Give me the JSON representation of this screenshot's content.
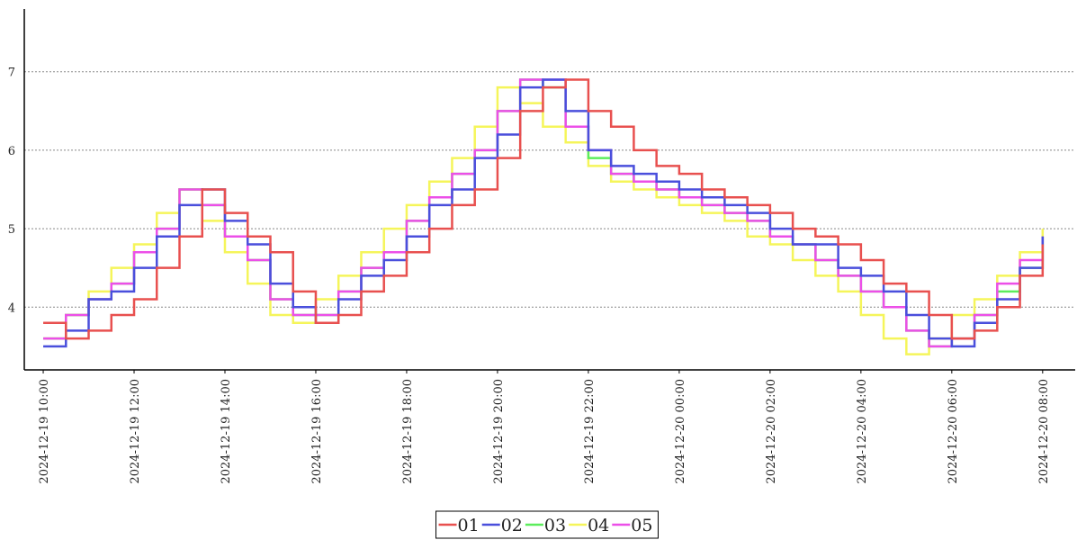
{
  "chart_data": {
    "type": "step-line",
    "x": [
      "2024-12-19 10:00",
      "2024-12-19 10:30",
      "2024-12-19 11:00",
      "2024-12-19 11:30",
      "2024-12-19 12:00",
      "2024-12-19 12:30",
      "2024-12-19 13:00",
      "2024-12-19 13:30",
      "2024-12-19 14:00",
      "2024-12-19 14:30",
      "2024-12-19 15:00",
      "2024-12-19 15:30",
      "2024-12-19 16:00",
      "2024-12-19 16:30",
      "2024-12-19 17:00",
      "2024-12-19 17:30",
      "2024-12-19 18:00",
      "2024-12-19 18:30",
      "2024-12-19 19:00",
      "2024-12-19 19:30",
      "2024-12-19 20:00",
      "2024-12-19 20:30",
      "2024-12-19 21:00",
      "2024-12-19 21:30",
      "2024-12-19 22:00",
      "2024-12-19 22:30",
      "2024-12-19 23:00",
      "2024-12-19 23:30",
      "2024-12-20 00:00",
      "2024-12-20 00:30",
      "2024-12-20 01:00",
      "2024-12-20 01:30",
      "2024-12-20 02:00",
      "2024-12-20 02:30",
      "2024-12-20 03:00",
      "2024-12-20 03:30",
      "2024-12-20 04:00",
      "2024-12-20 04:30",
      "2024-12-20 05:00",
      "2024-12-20 05:30",
      "2024-12-20 06:00",
      "2024-12-20 06:30",
      "2024-12-20 07:00",
      "2024-12-20 07:30",
      "2024-12-20 08:00"
    ],
    "series": [
      {
        "name": "01",
        "color": "#e8504f",
        "values": [
          3.8,
          3.6,
          3.7,
          3.9,
          4.1,
          4.5,
          4.9,
          5.5,
          5.2,
          4.9,
          4.7,
          4.2,
          3.8,
          3.9,
          4.2,
          4.4,
          4.7,
          5.0,
          5.3,
          5.5,
          5.9,
          6.5,
          6.8,
          6.9,
          6.5,
          6.3,
          6.0,
          5.8,
          5.7,
          5.5,
          5.4,
          5.3,
          5.2,
          5.0,
          4.9,
          4.8,
          4.6,
          4.3,
          4.2,
          3.9,
          3.6,
          3.7,
          4.0,
          4.4,
          4.8
        ]
      },
      {
        "name": "02",
        "color": "#4a4fdc",
        "values": [
          3.5,
          3.7,
          4.1,
          4.2,
          4.5,
          4.9,
          5.3,
          5.5,
          5.1,
          4.8,
          4.3,
          4.0,
          3.8,
          4.1,
          4.4,
          4.6,
          4.9,
          5.3,
          5.5,
          5.9,
          6.2,
          6.8,
          6.9,
          6.5,
          6.0,
          5.8,
          5.7,
          5.6,
          5.5,
          5.4,
          5.3,
          5.2,
          5.0,
          4.8,
          4.8,
          4.5,
          4.4,
          4.2,
          3.9,
          3.6,
          3.5,
          3.8,
          4.1,
          4.5,
          4.9
        ]
      },
      {
        "name": "03",
        "color": "#5ced5c",
        "values": [
          3.6,
          3.9,
          4.1,
          4.3,
          4.7,
          5.0,
          5.5,
          5.3,
          4.9,
          4.6,
          4.1,
          3.9,
          3.9,
          4.2,
          4.5,
          4.7,
          5.1,
          5.4,
          5.7,
          6.0,
          6.5,
          6.9,
          6.8,
          6.3,
          5.9,
          5.7,
          5.6,
          5.5,
          5.4,
          5.3,
          5.2,
          5.1,
          4.9,
          4.8,
          4.6,
          4.4,
          4.2,
          4.0,
          3.7,
          3.5,
          3.6,
          3.9,
          4.2,
          4.5,
          4.9
        ]
      },
      {
        "name": "04",
        "color": "#f5f55a",
        "values": [
          3.6,
          3.9,
          4.2,
          4.5,
          4.8,
          5.2,
          5.5,
          5.1,
          4.7,
          4.3,
          3.9,
          3.8,
          4.1,
          4.4,
          4.7,
          5.0,
          5.3,
          5.6,
          5.9,
          6.3,
          6.8,
          6.6,
          6.3,
          6.1,
          5.8,
          5.6,
          5.5,
          5.4,
          5.3,
          5.2,
          5.1,
          4.9,
          4.8,
          4.6,
          4.4,
          4.2,
          3.9,
          3.6,
          3.4,
          3.6,
          3.9,
          4.1,
          4.4,
          4.7,
          5.0
        ]
      },
      {
        "name": "05",
        "color": "#ec4fe8",
        "values": [
          3.6,
          3.9,
          4.1,
          4.3,
          4.7,
          5.0,
          5.5,
          5.3,
          4.9,
          4.6,
          4.1,
          3.9,
          3.9,
          4.2,
          4.5,
          4.7,
          5.1,
          5.4,
          5.7,
          6.0,
          6.5,
          6.9,
          6.9,
          6.3,
          6.0,
          5.7,
          5.6,
          5.5,
          5.4,
          5.3,
          5.2,
          5.1,
          4.9,
          4.8,
          4.6,
          4.4,
          4.2,
          4.0,
          3.7,
          3.5,
          3.6,
          3.9,
          4.3,
          4.6,
          4.9
        ]
      }
    ],
    "xlim": [
      "2024-12-19 09:35",
      "2024-12-20 08:43"
    ],
    "xticks": [
      "2024-12-19 10:00",
      "2024-12-19 12:00",
      "2024-12-19 14:00",
      "2024-12-19 16:00",
      "2024-12-19 18:00",
      "2024-12-19 20:00",
      "2024-12-19 22:00",
      "2024-12-20 00:00",
      "2024-12-20 02:00",
      "2024-12-20 04:00",
      "2024-12-20 06:00",
      "2024-12-20 08:00"
    ],
    "ylim": [
      3.2,
      7.8
    ],
    "yticks": [
      4,
      5,
      6,
      7
    ],
    "grid": true,
    "legend": "bottom"
  }
}
